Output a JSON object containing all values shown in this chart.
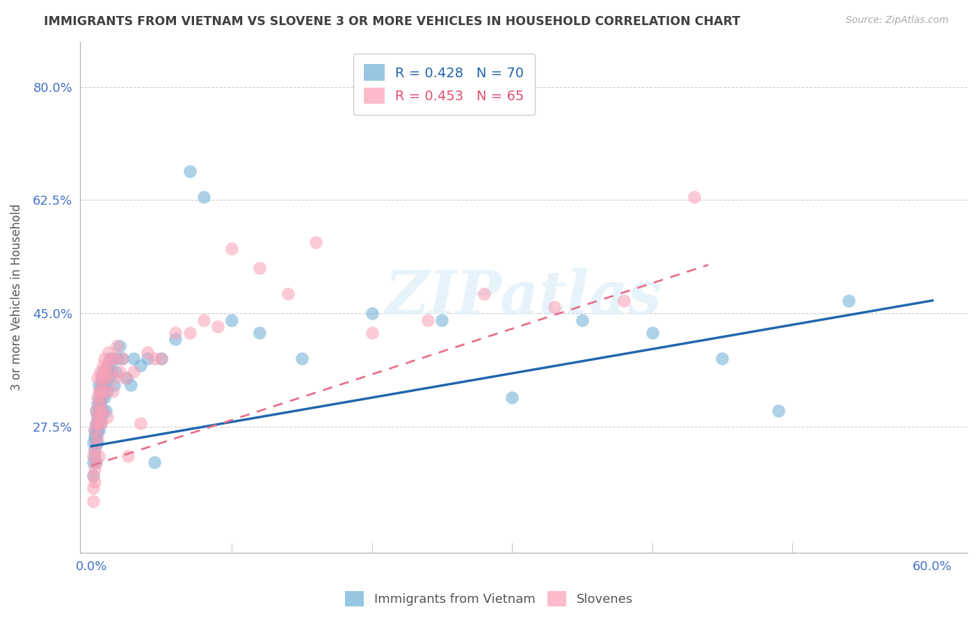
{
  "title": "IMMIGRANTS FROM VIETNAM VS SLOVENE 3 OR MORE VEHICLES IN HOUSEHOLD CORRELATION CHART",
  "source": "Source: ZipAtlas.com",
  "xlabel_ticks": [
    "0.0%",
    "60.0%"
  ],
  "ylabel_ticks": [
    "27.5%",
    "45.0%",
    "62.5%",
    "80.0%"
  ],
  "ylabel_tick_values": [
    0.275,
    0.45,
    0.625,
    0.8
  ],
  "xlabel_tick_values": [
    0.0,
    0.6
  ],
  "xlim": [
    -0.008,
    0.625
  ],
  "ylim": [
    0.08,
    0.87
  ],
  "ylabel": "3 or more Vehicles in Household",
  "watermark": "ZIPatlas",
  "legend_line1": "R = 0.428   N = 70",
  "legend_line2": "R = 0.453   N = 65",
  "blue_color": "#6baed6",
  "pink_color": "#fa9fb5",
  "blue_line_color": "#2166ac",
  "pink_line_color": "#e8708a",
  "axis_label_color": "#4472c4",
  "title_color": "#404040",
  "grid_color": "#cccccc",
  "blue_scatter_x": [
    0.001,
    0.001,
    0.001,
    0.002,
    0.002,
    0.002,
    0.002,
    0.003,
    0.003,
    0.003,
    0.003,
    0.003,
    0.004,
    0.004,
    0.004,
    0.004,
    0.004,
    0.005,
    0.005,
    0.005,
    0.005,
    0.005,
    0.006,
    0.006,
    0.006,
    0.006,
    0.007,
    0.007,
    0.007,
    0.007,
    0.008,
    0.008,
    0.008,
    0.009,
    0.009,
    0.01,
    0.01,
    0.011,
    0.011,
    0.012,
    0.012,
    0.013,
    0.014,
    0.015,
    0.016,
    0.017,
    0.018,
    0.02,
    0.022,
    0.025,
    0.028,
    0.03,
    0.035,
    0.04,
    0.045,
    0.05,
    0.06,
    0.07,
    0.08,
    0.1,
    0.12,
    0.15,
    0.2,
    0.25,
    0.3,
    0.35,
    0.4,
    0.45,
    0.49,
    0.54
  ],
  "blue_scatter_y": [
    0.22,
    0.25,
    0.2,
    0.24,
    0.27,
    0.23,
    0.26,
    0.25,
    0.28,
    0.3,
    0.22,
    0.26,
    0.27,
    0.29,
    0.31,
    0.25,
    0.28,
    0.3,
    0.32,
    0.27,
    0.29,
    0.34,
    0.31,
    0.33,
    0.28,
    0.3,
    0.32,
    0.35,
    0.29,
    0.34,
    0.33,
    0.36,
    0.3,
    0.34,
    0.32,
    0.35,
    0.3,
    0.36,
    0.33,
    0.37,
    0.35,
    0.38,
    0.36,
    0.38,
    0.34,
    0.36,
    0.38,
    0.4,
    0.38,
    0.35,
    0.34,
    0.38,
    0.37,
    0.38,
    0.22,
    0.38,
    0.41,
    0.67,
    0.63,
    0.44,
    0.42,
    0.38,
    0.45,
    0.44,
    0.32,
    0.44,
    0.42,
    0.38,
    0.3,
    0.47
  ],
  "pink_scatter_x": [
    0.001,
    0.001,
    0.001,
    0.001,
    0.002,
    0.002,
    0.002,
    0.002,
    0.003,
    0.003,
    0.003,
    0.003,
    0.004,
    0.004,
    0.004,
    0.004,
    0.005,
    0.005,
    0.005,
    0.005,
    0.006,
    0.006,
    0.006,
    0.007,
    0.007,
    0.007,
    0.008,
    0.008,
    0.008,
    0.009,
    0.009,
    0.01,
    0.01,
    0.011,
    0.011,
    0.012,
    0.013,
    0.014,
    0.015,
    0.016,
    0.017,
    0.018,
    0.02,
    0.022,
    0.024,
    0.026,
    0.03,
    0.035,
    0.04,
    0.045,
    0.05,
    0.06,
    0.07,
    0.08,
    0.09,
    0.1,
    0.12,
    0.14,
    0.16,
    0.2,
    0.24,
    0.28,
    0.33,
    0.38,
    0.43
  ],
  "pink_scatter_y": [
    0.16,
    0.2,
    0.23,
    0.18,
    0.21,
    0.24,
    0.19,
    0.27,
    0.22,
    0.25,
    0.28,
    0.3,
    0.26,
    0.29,
    0.32,
    0.35,
    0.28,
    0.31,
    0.33,
    0.23,
    0.3,
    0.33,
    0.36,
    0.32,
    0.35,
    0.28,
    0.34,
    0.37,
    0.3,
    0.36,
    0.38,
    0.33,
    0.35,
    0.37,
    0.29,
    0.39,
    0.36,
    0.38,
    0.33,
    0.35,
    0.38,
    0.4,
    0.36,
    0.38,
    0.35,
    0.23,
    0.36,
    0.28,
    0.39,
    0.38,
    0.38,
    0.42,
    0.42,
    0.44,
    0.43,
    0.55,
    0.52,
    0.48,
    0.56,
    0.42,
    0.44,
    0.48,
    0.46,
    0.47,
    0.63
  ],
  "blue_trend_x": [
    0.0,
    0.6
  ],
  "blue_trend_y": [
    0.245,
    0.47
  ],
  "pink_trend_x": [
    0.0,
    0.44
  ],
  "pink_trend_y": [
    0.215,
    0.525
  ]
}
